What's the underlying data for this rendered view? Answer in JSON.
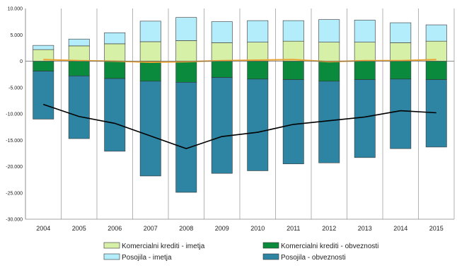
{
  "chart_data": {
    "type": "bar",
    "stacked": true,
    "categories": [
      "2004",
      "2005",
      "2006",
      "2007",
      "2008",
      "2009",
      "2010",
      "2011",
      "2012",
      "2013",
      "2014",
      "2015"
    ],
    "ylim": [
      -30000,
      10000
    ],
    "yticks": [
      10000,
      5000,
      0,
      -5000,
      -10000,
      -15000,
      -20000,
      -25000,
      -30000
    ],
    "ytick_labels": [
      "10.000",
      "5.000",
      "0",
      "-5.000",
      "-10.000",
      "-15.000",
      "-20.000",
      "-25.000",
      "-30.000"
    ],
    "grid": "vertical",
    "legend_position": "bottom",
    "series": [
      {
        "name": "Komercialni krediti - imetja",
        "color": "#d6f0a8",
        "stack": "positive",
        "values": [
          2200,
          2900,
          3300,
          3700,
          3900,
          3500,
          3600,
          3800,
          3600,
          3600,
          3500,
          3800
        ]
      },
      {
        "name": "Posojila - imetja",
        "color": "#b3ecfb",
        "stack": "positive",
        "values": [
          800,
          1300,
          2100,
          3900,
          4400,
          4000,
          4100,
          3900,
          4300,
          4200,
          3800,
          3100
        ]
      },
      {
        "name": "Komercialni krediti - obveznosti",
        "color": "#0a8a3c",
        "stack": "negative",
        "values": [
          -1900,
          -2800,
          -3300,
          -3800,
          -4000,
          -3100,
          -3400,
          -3500,
          -3800,
          -3500,
          -3400,
          -3500
        ]
      },
      {
        "name": "Posojila - obveznosti",
        "color": "#2e84a3",
        "stack": "negative",
        "values": [
          -9100,
          -11900,
          -13800,
          -18000,
          -20900,
          -18200,
          -17400,
          -16000,
          -15500,
          -14800,
          -13200,
          -12800
        ]
      }
    ],
    "lines": [
      {
        "color": "#e8a030",
        "values": [
          300,
          100,
          0,
          -200,
          -100,
          100,
          200,
          300,
          -100,
          100,
          100,
          300
        ]
      },
      {
        "color": "#000000",
        "values": [
          -8200,
          -10500,
          -11800,
          -14200,
          -16600,
          -14300,
          -13500,
          -12000,
          -11300,
          -10600,
          -9400,
          -9800
        ]
      }
    ]
  }
}
